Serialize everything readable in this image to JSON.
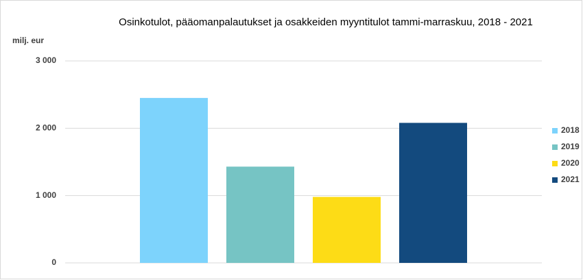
{
  "chart_data": {
    "type": "bar",
    "title": "Osinkotulot, pääomanpalautukset ja osakkeiden myyntitulot tammi-marraskuu, 2018 - 2021",
    "y_label": "milj. eur",
    "categories": [
      null
    ],
    "series": [
      {
        "name": "2018",
        "color": "#7dd3fc",
        "values": [
          2450
        ]
      },
      {
        "name": "2019",
        "color": "#76c4c4",
        "values": [
          1430
        ]
      },
      {
        "name": "2020",
        "color": "#fddc16",
        "values": [
          980
        ]
      },
      {
        "name": "2021",
        "color": "#134a7e",
        "values": [
          2080
        ]
      }
    ],
    "ylim": [
      0,
      3000
    ],
    "yticks": [
      0,
      {
        "value": 1000,
        "label": "1 000"
      },
      {
        "value": 2000,
        "label": "2 000"
      },
      {
        "value": 3000,
        "label": "3 000"
      }
    ],
    "grid": true,
    "legend": "right"
  }
}
